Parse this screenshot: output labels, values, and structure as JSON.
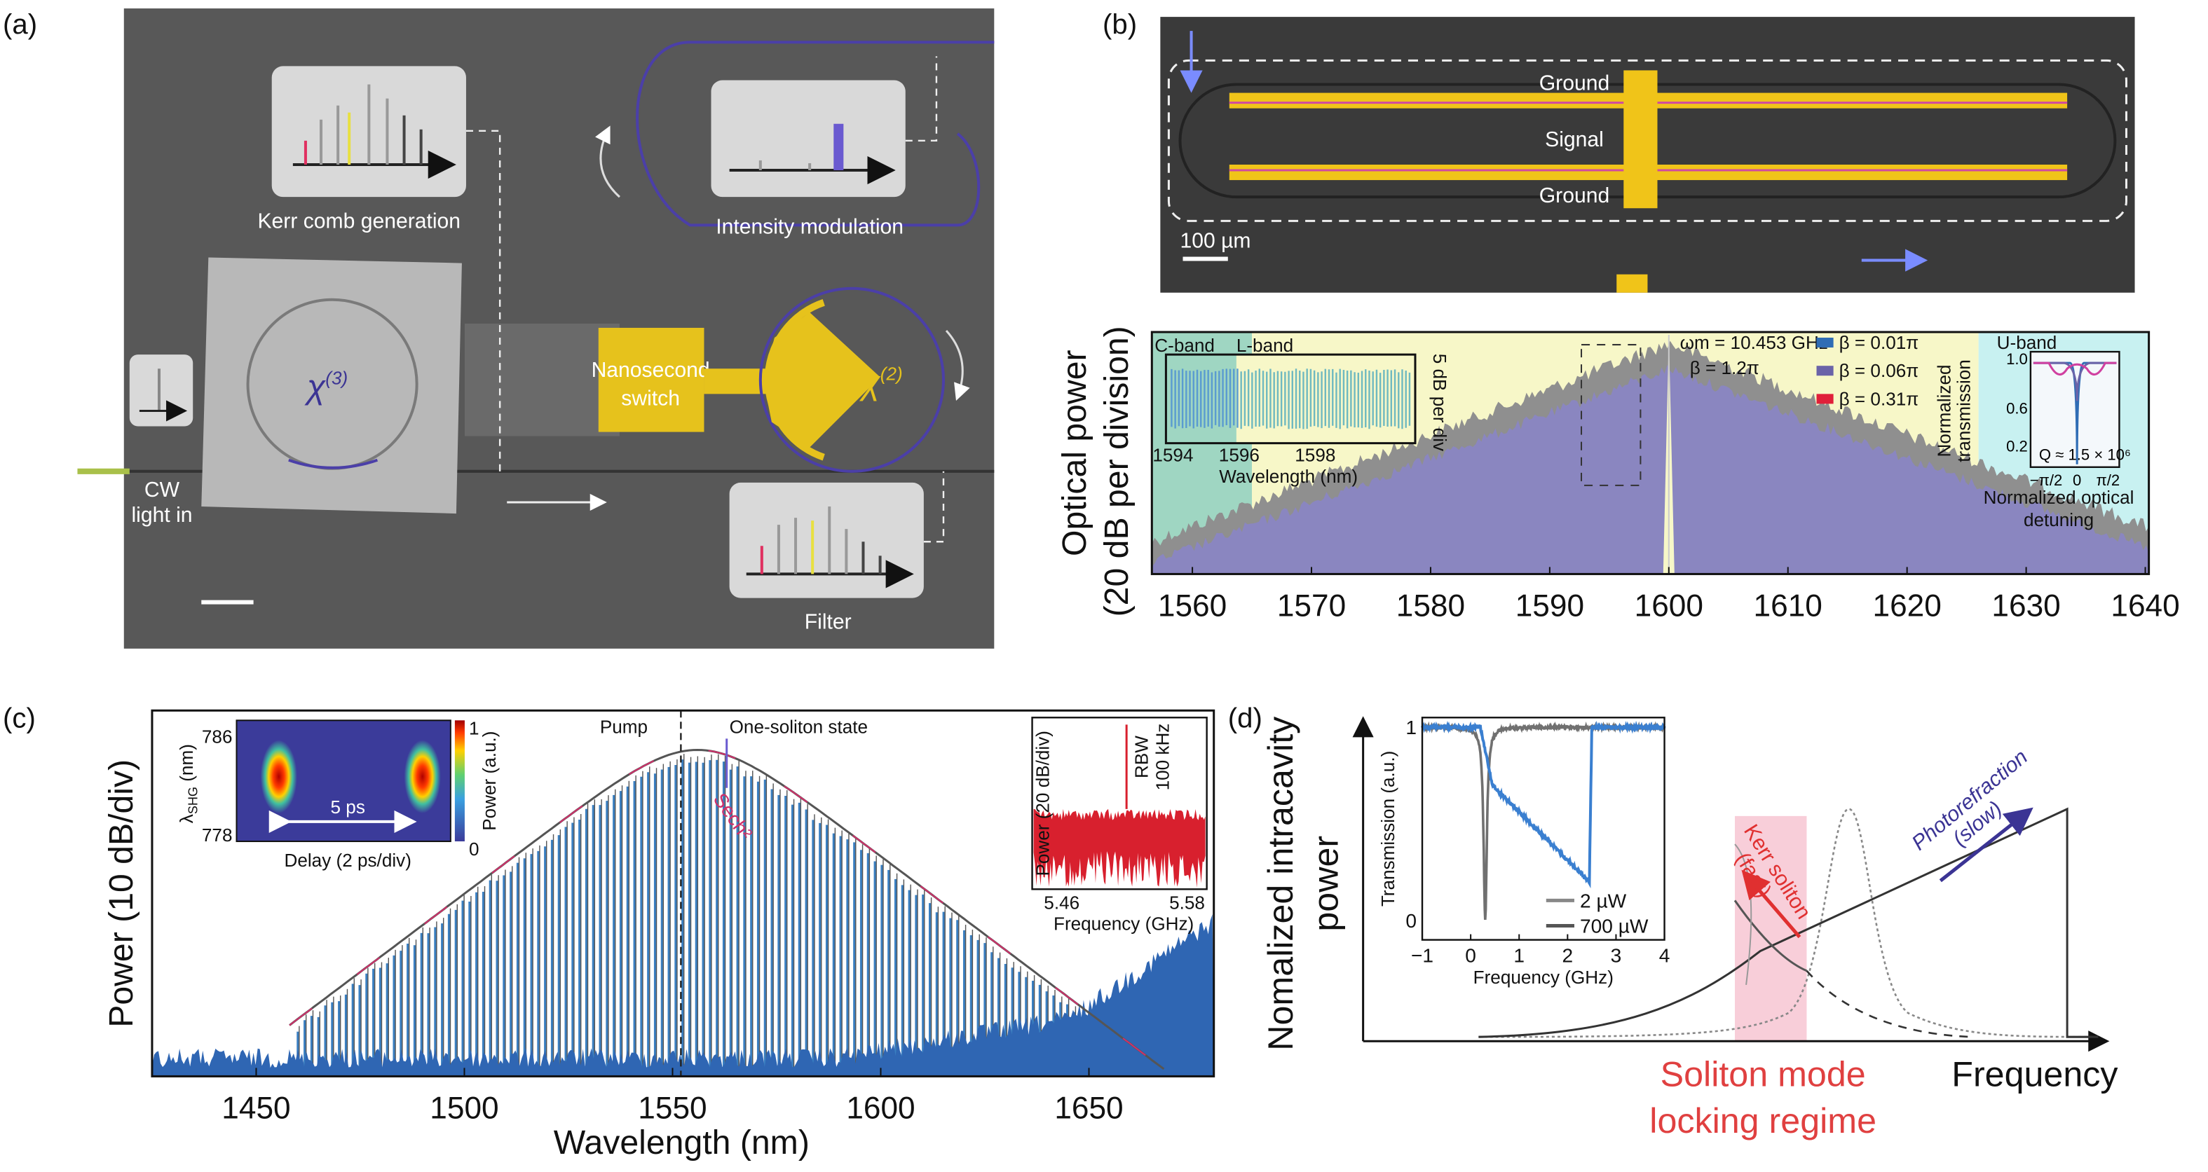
{
  "panel_labels": [
    "(a)",
    "(b)",
    "(c)",
    "(d)"
  ],
  "panel_a": {
    "kerr_label": "Kerr comb generation",
    "intensity_label": "Intensity modulation",
    "switch_line1": "Nanosecond",
    "switch_line2": "switch",
    "filter_label": "Filter",
    "cw_line1": "CW",
    "cw_line2": "light in",
    "chi": "χ",
    "chi3_sup": "(3)",
    "chi2_sup": "(2)",
    "colors": {
      "background": "#585858",
      "gold": "#e6c21c",
      "waveguide": "#4b3fa8",
      "box": "#d9d9d9"
    }
  },
  "panel_b_device": {
    "ground_top": "Ground",
    "signal": "Signal",
    "ground_bottom": "Ground",
    "scale_bar": "100 µm",
    "colors": {
      "background": "#3a3a3a",
      "electrode": "#f0c419",
      "arrow": "#7a8cff"
    }
  },
  "chart_data": [
    {
      "type": "area",
      "ylabel_line1": "Optical power",
      "ylabel_line2": "(20 dB per division)",
      "xlim": [
        1556.6,
        1640.3
      ],
      "xticks": [
        "1560",
        "1570",
        "1580",
        "1590",
        "1600",
        "1610",
        "1620",
        "1630",
        "1640"
      ],
      "peak_nm": 1600,
      "bands": [
        {
          "name": "C-band",
          "range": [
            1556.6,
            1565
          ],
          "color": "#9fd6c2"
        },
        {
          "name": "L-band",
          "range": [
            1565,
            1626
          ],
          "color": "#f7f7c8"
        },
        {
          "name": "U-band",
          "range": [
            1626,
            1640.3
          ],
          "color": "#c8f1f1"
        }
      ],
      "annotation_wm": "ωm = 10.453 GHz",
      "annotation_beta": "β = 1.2π",
      "legend": [
        {
          "label": "β = 0.01π",
          "color": "#2f6db5"
        },
        {
          "label": "β = 0.06π",
          "color": "#6a63a8"
        },
        {
          "label": "β = 0.31π",
          "color": "#e0203a"
        }
      ],
      "series_colors": {
        "outer": "#8f8f8f",
        "inner": "#8a86c0"
      },
      "inset_zoom": {
        "xlabel": "Wavelength (nm)",
        "ylabel": "5 dB per div",
        "xticks": [
          "1594",
          "1596",
          "1598"
        ]
      },
      "inset_resonance": {
        "ylabel_line1": "Normalized",
        "ylabel_line2": "transmission",
        "yticks": [
          "1.0",
          "0.6",
          "0.2"
        ],
        "xticks": [
          "−π/2",
          "0",
          "π/2"
        ],
        "xlabel_line1": "Normalized optical",
        "xlabel_line2": "detuning",
        "annotation": "Q ≈ 1.5 × 10⁶"
      }
    },
    {
      "type": "bar",
      "xlabel": "Wavelength (nm)",
      "ylabel": "Power (10 dB/div)",
      "xlim": [
        1425,
        1680
      ],
      "xticks": [
        1450,
        1500,
        1550,
        1600,
        1650
      ],
      "pump_nm": 1552,
      "envelope_center_nm": 1556,
      "comb_range_nm": [
        1460,
        1665
      ],
      "annotation_pump": "Pump",
      "annotation_state": "One-soliton state",
      "fit_label": "Sech²",
      "colors": {
        "comb": "#3a7fc1",
        "envelope": "#555555",
        "fit": "#d0306a",
        "floor": "#2f66b3"
      },
      "inset_heatmap": {
        "ylabel": "λ",
        "ylabel_sub": "SHG",
        "ylabel_unit": " (nm)",
        "yticks": [
          "786",
          "778"
        ],
        "xlabel": "Delay (2 ps/div)",
        "annotation": "5 ps",
        "colorbar_label": "Power (a.u.)",
        "colorbar_ticks": [
          "1",
          "0"
        ]
      },
      "inset_rf": {
        "ylabel": "Power (20 dB/div)",
        "xlabel": "Frequency (GHz)",
        "xticks": [
          "5.46",
          "5.58"
        ],
        "annotation_line1": "RBW",
        "annotation_line2": "100 kHz",
        "color": "#d8202e"
      }
    },
    {
      "type": "line",
      "ylabel_line1": "Nomalized intracavity",
      "ylabel_line2": "power",
      "xlabel": "Frequency",
      "annotation_kerr_line1": "Kerr soliton",
      "annotation_kerr_line2": "(fast)",
      "annotation_photo_line1": "Photorefraction",
      "annotation_photo_line2": "(slow)",
      "regime_line1": "Soliton mode",
      "regime_line2": "locking regime",
      "colors": {
        "regime": "#f7c6d2",
        "kerr": "#e03030",
        "photo": "#3b3494"
      },
      "inset": {
        "type": "line",
        "ylabel": "Transmission (a.u.)",
        "xlabel": "Frequency (GHz)",
        "xlim": [
          -1,
          4
        ],
        "ylim": [
          -0.1,
          1.05
        ],
        "xticks": [
          "−1",
          "0",
          "1",
          "2",
          "3",
          "4"
        ],
        "yticks": [
          "1",
          "0"
        ],
        "series": [
          {
            "name": "2 µW",
            "color": "#707070",
            "dip_center_GHz": 0.3,
            "dip_min": 0.0
          },
          {
            "name": "700 µW",
            "color": "#3a7fd0",
            "dip_start_GHz": 0.25,
            "dip_end_GHz": 2.45,
            "dip_min": 0.2
          }
        ]
      }
    }
  ]
}
